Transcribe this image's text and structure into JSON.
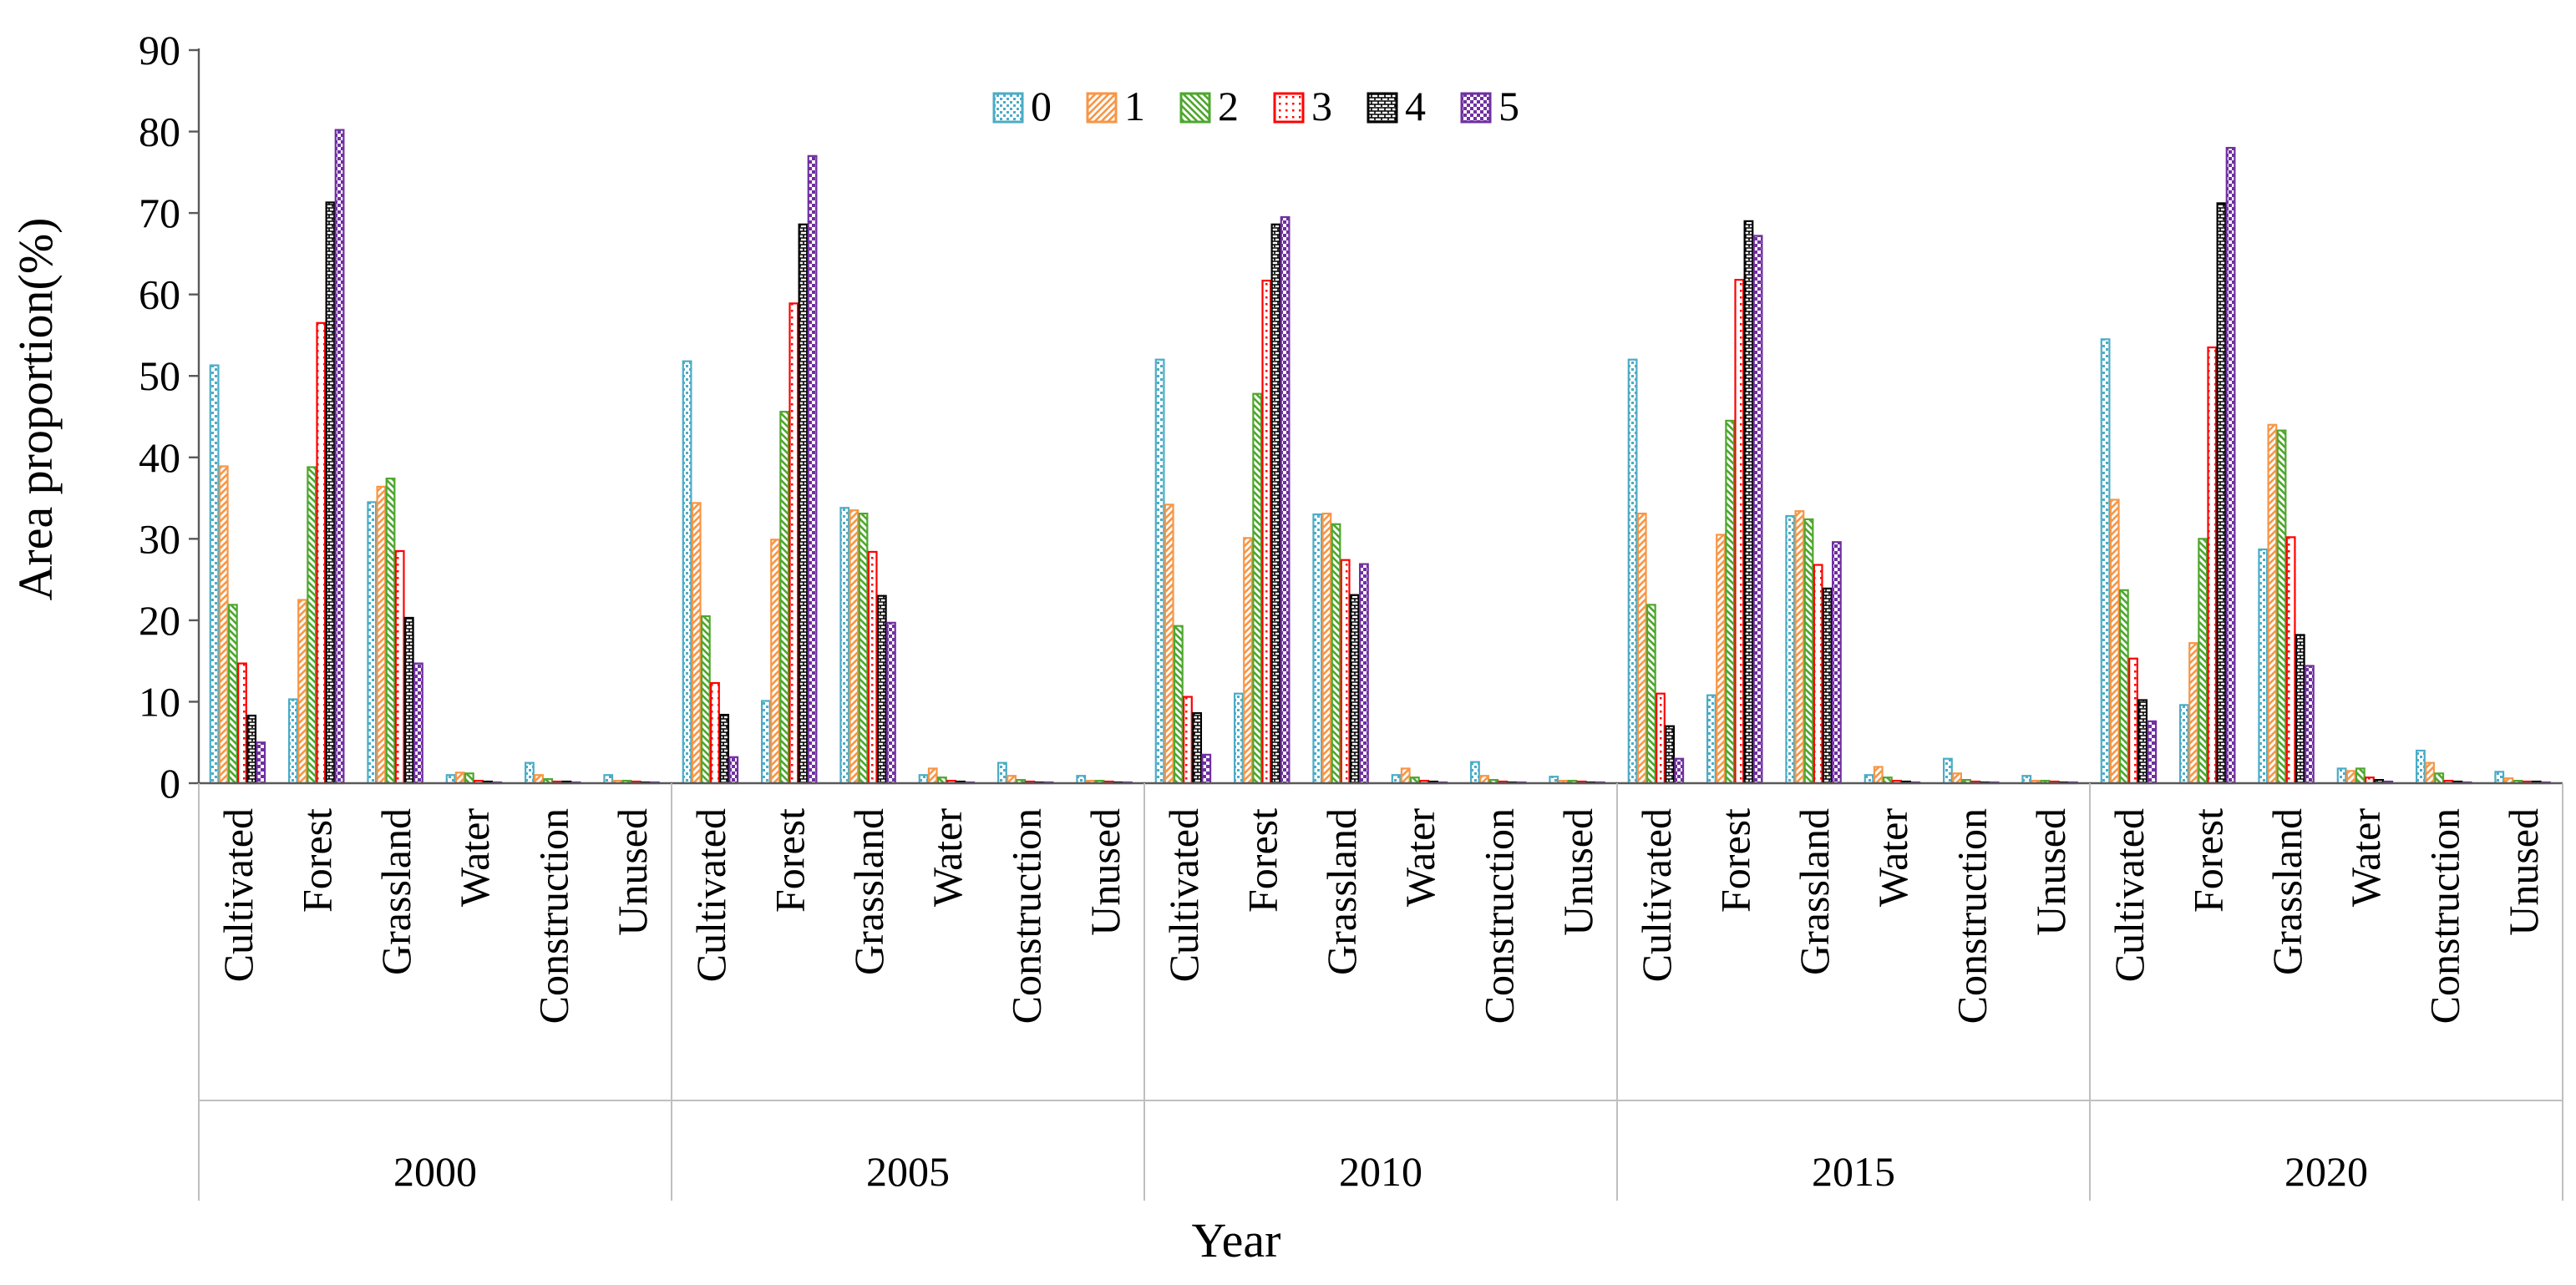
{
  "chart_data": {
    "type": "bar",
    "title": "",
    "xlabel": "Year",
    "ylabel": "Area proportion(%)",
    "ylim": [
      0,
      90
    ],
    "yticks": [
      0,
      10,
      20,
      30,
      40,
      50,
      60,
      70,
      80,
      90
    ],
    "grid": false,
    "legend": "top-center",
    "categories": [
      "Cultivated",
      "Forest",
      "Grassland",
      "Water",
      "Construction",
      "Unused"
    ],
    "years": [
      "2000",
      "2005",
      "2010",
      "2015",
      "2020"
    ],
    "series": [
      {
        "name": "0",
        "color": "#4BACC6",
        "pattern": "dots",
        "values": [
          [
            51.3,
            10.3,
            34.5,
            1.0,
            2.5,
            1.0
          ],
          [
            51.8,
            10.1,
            33.8,
            1.0,
            2.5,
            0.9
          ],
          [
            52.0,
            11.0,
            33.0,
            1.0,
            2.6,
            0.8
          ],
          [
            52.0,
            10.8,
            32.8,
            1.0,
            3.0,
            0.9
          ],
          [
            54.5,
            9.6,
            28.7,
            1.8,
            4.0,
            1.4
          ]
        ]
      },
      {
        "name": "1",
        "color": "#F79646",
        "pattern": "diag-right",
        "values": [
          [
            38.9,
            22.5,
            36.4,
            1.3,
            1.0,
            0.3
          ],
          [
            34.4,
            29.9,
            33.5,
            1.8,
            0.9,
            0.3
          ],
          [
            34.2,
            30.1,
            33.1,
            1.8,
            0.9,
            0.3
          ],
          [
            33.1,
            30.5,
            33.4,
            2.0,
            1.2,
            0.3
          ],
          [
            34.8,
            17.2,
            44.0,
            1.5,
            2.5,
            0.6
          ]
        ]
      },
      {
        "name": "2",
        "color": "#4EA72E",
        "pattern": "diag-left",
        "values": [
          [
            21.9,
            38.8,
            37.4,
            1.2,
            0.5,
            0.3
          ],
          [
            20.5,
            45.6,
            33.1,
            0.7,
            0.4,
            0.3
          ],
          [
            19.3,
            47.8,
            31.8,
            0.7,
            0.4,
            0.3
          ],
          [
            21.9,
            44.5,
            32.4,
            0.7,
            0.4,
            0.3
          ],
          [
            23.7,
            30.0,
            43.3,
            1.8,
            1.2,
            0.3
          ]
        ]
      },
      {
        "name": "3",
        "color": "#FF0000",
        "pattern": "dots-sparse",
        "values": [
          [
            14.7,
            56.5,
            28.5,
            0.3,
            0.2,
            0.2
          ],
          [
            12.3,
            58.9,
            28.4,
            0.3,
            0.2,
            0.2
          ],
          [
            10.6,
            61.7,
            27.4,
            0.3,
            0.2,
            0.2
          ],
          [
            11.0,
            61.8,
            26.8,
            0.3,
            0.2,
            0.2
          ],
          [
            15.3,
            53.5,
            30.2,
            0.7,
            0.3,
            0.2
          ]
        ]
      },
      {
        "name": "4",
        "color": "#000000",
        "pattern": "bricks",
        "values": [
          [
            8.3,
            71.3,
            20.3,
            0.2,
            0.2,
            0.1
          ],
          [
            8.4,
            68.6,
            23.0,
            0.2,
            0.1,
            0.1
          ],
          [
            8.6,
            68.6,
            23.1,
            0.2,
            0.1,
            0.1
          ],
          [
            7.0,
            69.0,
            23.9,
            0.2,
            0.1,
            0.1
          ],
          [
            10.2,
            71.2,
            18.2,
            0.4,
            0.2,
            0.2
          ]
        ]
      },
      {
        "name": "5",
        "color": "#7030A0",
        "pattern": "checks",
        "values": [
          [
            5.0,
            80.2,
            14.7,
            0.1,
            0.1,
            0.1
          ],
          [
            3.2,
            77.0,
            19.7,
            0.1,
            0.1,
            0.1
          ],
          [
            3.5,
            69.5,
            26.9,
            0.1,
            0.1,
            0.1
          ],
          [
            3.0,
            67.2,
            29.6,
            0.1,
            0.1,
            0.1
          ],
          [
            7.6,
            78.0,
            14.4,
            0.2,
            0.1,
            0.1
          ]
        ]
      }
    ]
  }
}
